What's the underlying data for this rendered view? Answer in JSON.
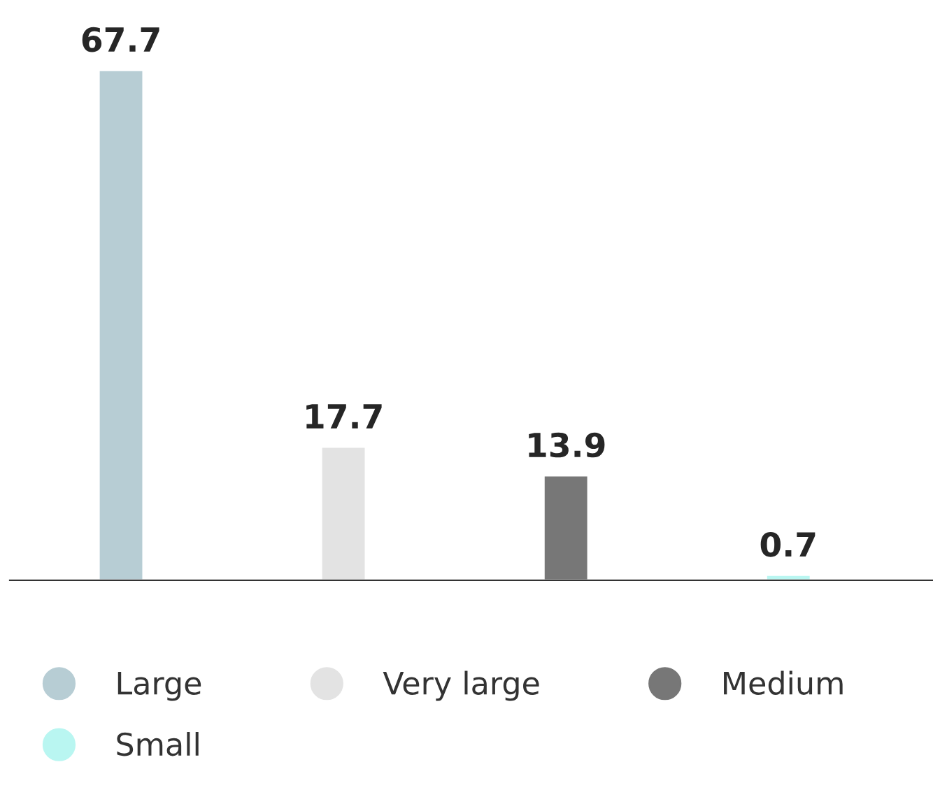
{
  "chart_data": {
    "type": "bar",
    "categories": [
      null,
      null,
      null,
      null
    ],
    "stacked": true,
    "series": [
      {
        "name": "Large",
        "color": "#b7cdd4",
        "values": [
          67.7,
          null,
          null,
          null
        ]
      },
      {
        "name": "Very large",
        "color": "#e3e3e3",
        "values": [
          null,
          17.7,
          null,
          null
        ]
      },
      {
        "name": "Medium",
        "color": "#777777",
        "values": [
          null,
          null,
          13.9,
          null
        ]
      },
      {
        "name": "Small",
        "color": "#b9f6f1",
        "values": [
          null,
          null,
          null,
          0.7
        ]
      }
    ],
    "data_labels": true,
    "legend": "bottom",
    "marker": "circle",
    "grid": false
  }
}
